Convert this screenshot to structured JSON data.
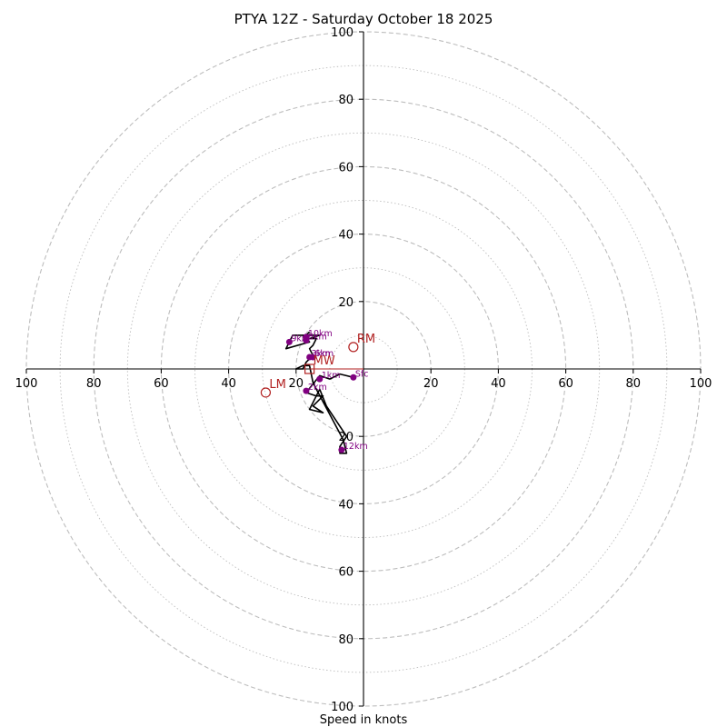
{
  "chart_data": {
    "type": "scatter",
    "title": "PTYA 12Z - Saturday October 18 2025",
    "xlabel": "Speed in knots",
    "ylabel": "",
    "xlim": [
      -100,
      100
    ],
    "ylim": [
      -100,
      100
    ],
    "grid": "concentric rings every 10 knots (dashed at 20, dotted at odd tens)",
    "axis_ticks": {
      "x": [
        "100",
        "80",
        "60",
        "40",
        "20",
        "20",
        "40",
        "60",
        "80",
        "100"
      ],
      "x_values": [
        -100,
        -80,
        -60,
        -40,
        -20,
        20,
        40,
        60,
        80,
        100
      ],
      "y": [
        "100",
        "80",
        "60",
        "40",
        "20",
        "20",
        "40",
        "60",
        "80",
        "100"
      ],
      "y_values": [
        100,
        80,
        60,
        40,
        20,
        -20,
        -40,
        -60,
        -80,
        -100
      ]
    },
    "colors": {
      "hodograph_line": "#000000",
      "points": "#800080",
      "motion": "#b22222",
      "grid": "#bdbdbd"
    },
    "hodograph": {
      "path": [
        [
          -3,
          -2.5
        ],
        [
          -7,
          -1.5
        ],
        [
          -10,
          -3
        ],
        [
          -13,
          -2
        ],
        [
          -17,
          -7
        ],
        [
          -14,
          -8
        ],
        [
          -12,
          -8
        ],
        [
          -15,
          -11
        ],
        [
          -12,
          -13
        ],
        [
          -16,
          -12
        ],
        [
          -13,
          -6
        ],
        [
          -11,
          -11
        ],
        [
          -5,
          -20
        ],
        [
          -7,
          -23
        ],
        [
          -7,
          -25
        ],
        [
          -5,
          -25
        ],
        [
          -6,
          -21
        ],
        [
          -14,
          -6
        ],
        [
          -15,
          -4
        ],
        [
          -16,
          1
        ],
        [
          -18,
          1
        ],
        [
          -20,
          0
        ],
        [
          -18,
          0
        ],
        [
          -17,
          2
        ],
        [
          -15,
          4
        ],
        [
          -16,
          6
        ],
        [
          -15,
          7
        ],
        [
          -14,
          9
        ],
        [
          -16,
          9
        ],
        [
          -13,
          10
        ],
        [
          -21,
          10
        ],
        [
          -23,
          6
        ],
        [
          -16,
          8
        ],
        [
          -18,
          10
        ],
        [
          -17,
          9
        ],
        [
          -17,
          10
        ],
        [
          -16,
          11
        ]
      ],
      "points": [
        {
          "label": "Sfc",
          "x": -3,
          "y": -2.5
        },
        {
          "label": "1km",
          "x": -13,
          "y": -3
        },
        {
          "label": "2km",
          "x": -17,
          "y": -6.5
        },
        {
          "label": "3km",
          "x": -16,
          "y": 3.5
        },
        {
          "label": "6km",
          "x": -15,
          "y": 3.5
        },
        {
          "label": "8km",
          "x": -17,
          "y": 8.5
        },
        {
          "label": "9km",
          "x": -22,
          "y": 8
        },
        {
          "label": "10km",
          "x": -17,
          "y": 9.5
        },
        {
          "label": "12km",
          "x": -6.5,
          "y": -24
        }
      ]
    },
    "storm_motion": [
      {
        "label": "RM",
        "x": -3,
        "y": 6.5,
        "marker": "open-circle"
      },
      {
        "label": "LM",
        "x": -29,
        "y": -7,
        "marker": "open-circle"
      },
      {
        "label": "MW",
        "x": -16,
        "y": 0,
        "marker": "open-square"
      }
    ]
  }
}
